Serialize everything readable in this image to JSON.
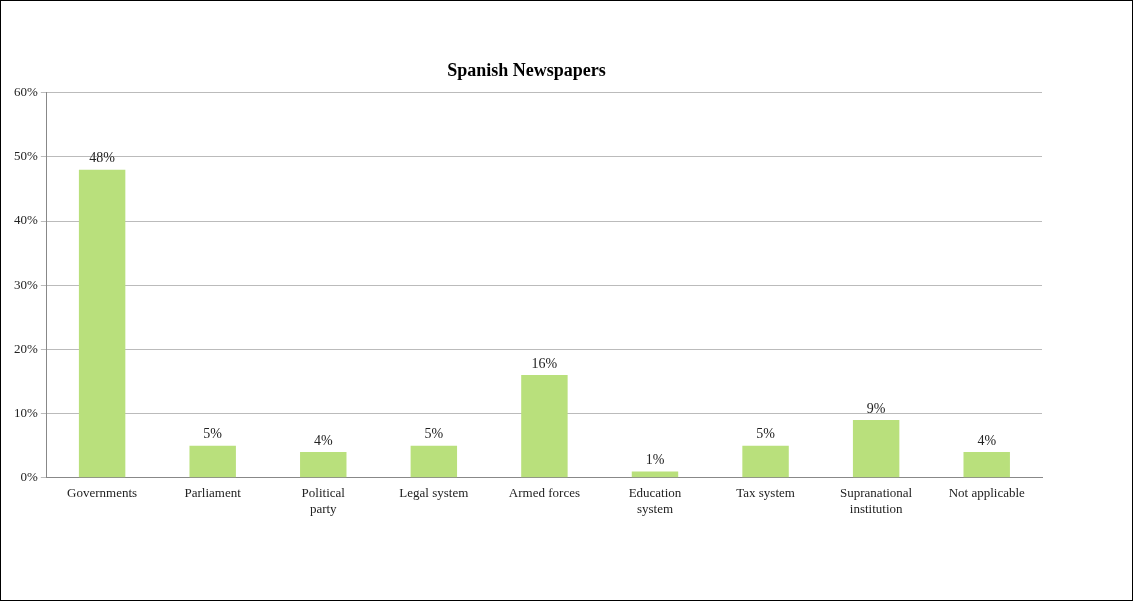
{
  "chart_data": {
    "type": "bar",
    "title": "Spanish Newspapers",
    "categories": [
      "Governments",
      "Parliament",
      "Political party",
      "Legal system",
      "Armed forces",
      "Education system",
      "Tax system",
      "Supranational institution",
      "Not applicable"
    ],
    "values": [
      48,
      5,
      4,
      5,
      16,
      1,
      5,
      9,
      4
    ],
    "value_labels": [
      "48%",
      "5%",
      "4%",
      "5%",
      "16%",
      "1%",
      "5%",
      "9%",
      "4%"
    ],
    "color": "#b9e07c",
    "ylim": [
      0,
      60
    ],
    "yticks": [
      {
        "value": 0,
        "label": "0%"
      },
      {
        "value": 10,
        "label": "10%"
      },
      {
        "value": 20,
        "label": "20%"
      },
      {
        "value": 30,
        "label": "30%"
      },
      {
        "value": 40,
        "label": "40%"
      },
      {
        "value": 50,
        "label": "50%"
      },
      {
        "value": 60,
        "label": "60%"
      }
    ],
    "grid": "y",
    "legend": false
  }
}
